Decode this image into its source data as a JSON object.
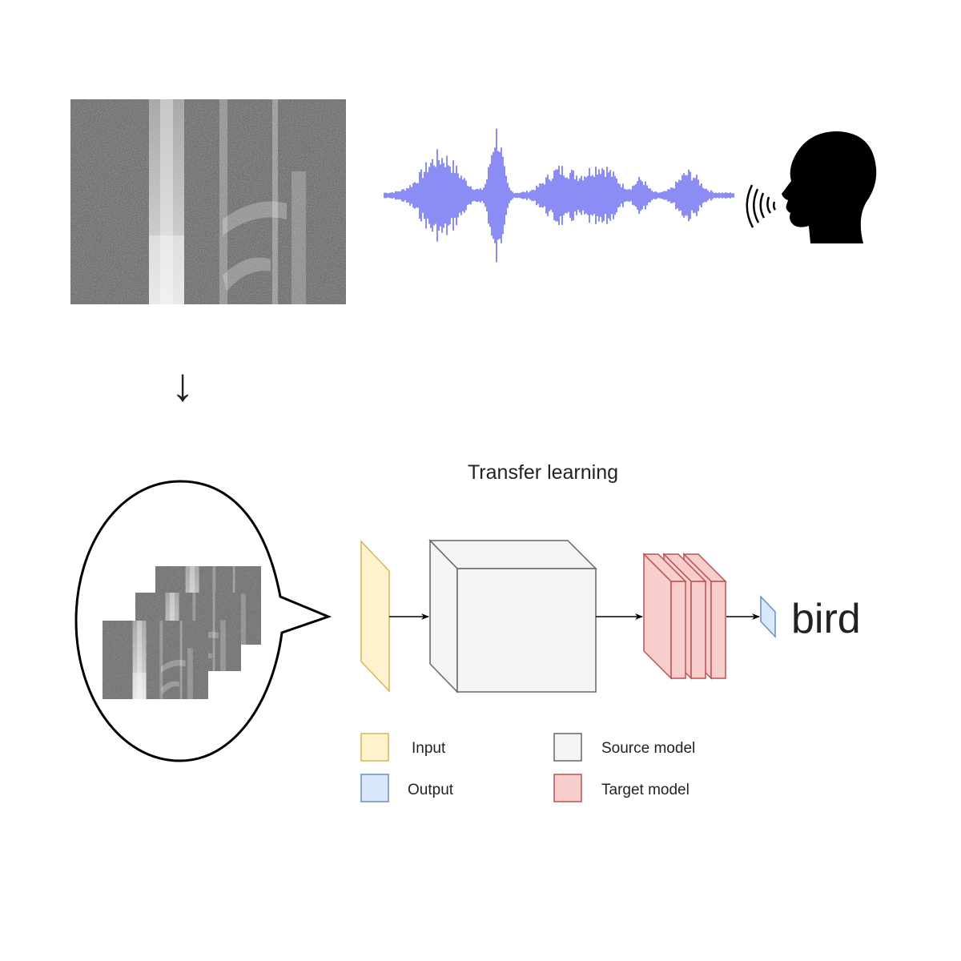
{
  "diagram": {
    "down_arrow": "↓",
    "title": "Transfer learning",
    "output_label": "bird",
    "legend": {
      "input": "Input",
      "output": "Output",
      "source_model": "Source model",
      "target_model": "Target model"
    },
    "colors": {
      "waveform": "#8c8cf5",
      "input_fill": "#fff2cc",
      "input_stroke": "#d6b656",
      "output_fill": "#dae8fc",
      "output_stroke": "#6c8ebf",
      "source_fill": "#f5f5f5",
      "source_stroke": "#666666",
      "target_fill": "#f8cecc",
      "target_stroke": "#b85450"
    },
    "icons": [
      "spectrogram-image",
      "waveform-icon",
      "speaking-head-icon",
      "down-arrow-icon",
      "speech-bubble-icon"
    ]
  }
}
